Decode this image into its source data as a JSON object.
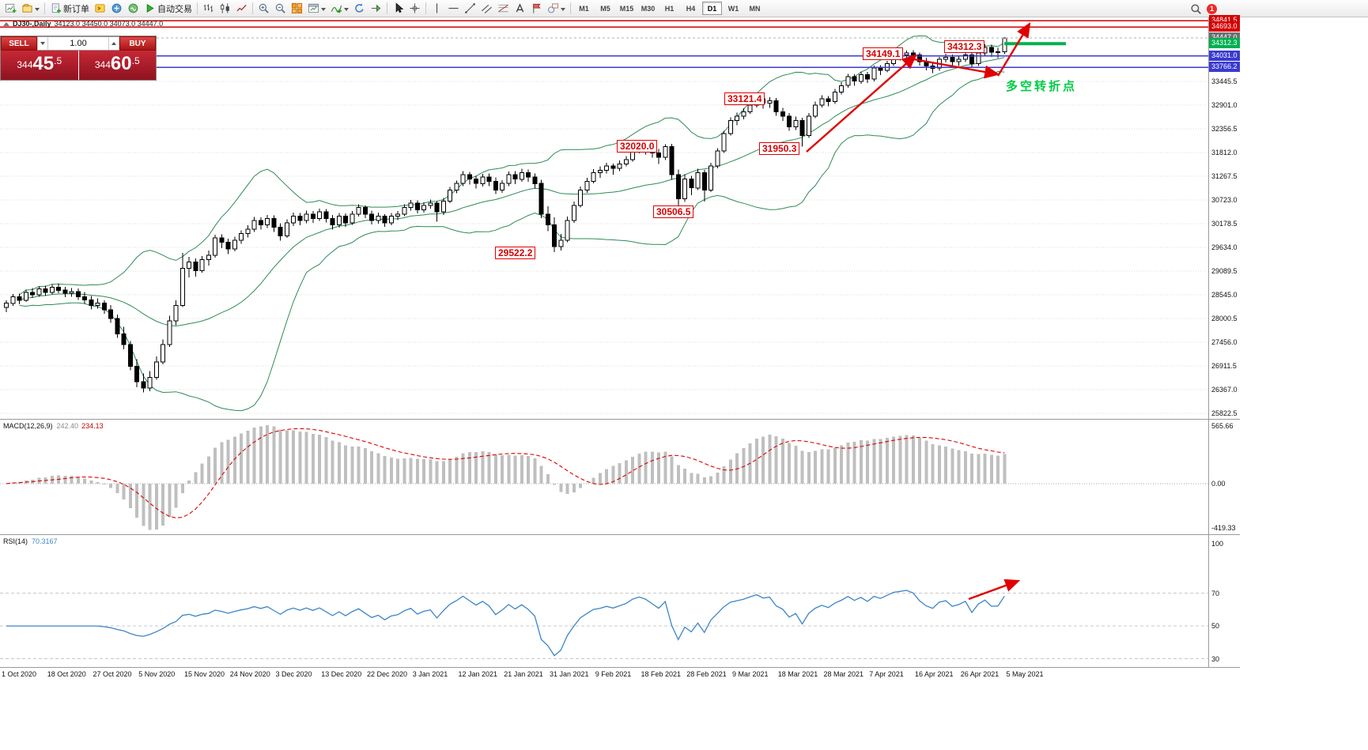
{
  "toolbar": {
    "items": [
      {
        "icon": "chart-plus",
        "name": "new-chart"
      },
      {
        "icon": "profiles",
        "name": "profiles",
        "dd": true
      },
      {
        "sep": true
      },
      {
        "icon": "doc-plus",
        "name": "new-order",
        "label": "新订单"
      },
      {
        "icon": "editor-yellow",
        "name": "metaeditor"
      },
      {
        "icon": "market-blue",
        "name": "market"
      },
      {
        "icon": "signal-green",
        "name": "signals"
      },
      {
        "icon": "play-green",
        "name": "autotrade",
        "label": "自动交易"
      },
      {
        "sep": true
      },
      {
        "icon": "bars",
        "name": "bar-chart-mode"
      },
      {
        "icon": "candles",
        "name": "candle-chart-mode"
      },
      {
        "icon": "line",
        "name": "line-chart-mode"
      },
      {
        "sep": true
      },
      {
        "icon": "zoom-in",
        "name": "zoom-in"
      },
      {
        "icon": "zoom-out",
        "name": "zoom-out"
      },
      {
        "icon": "tiles-orange",
        "name": "tile-windows"
      },
      {
        "icon": "chart-window",
        "name": "new-window",
        "dd": true
      },
      {
        "icon": "indicator-plus",
        "name": "indicators",
        "dd": true
      },
      {
        "icon": "refresh-blue",
        "name": "auto-scroll"
      },
      {
        "icon": "shift-chart",
        "name": "chart-shift"
      },
      {
        "sep": true
      },
      {
        "icon": "cursor",
        "name": "cursor-tool"
      },
      {
        "icon": "crosshair",
        "name": "crosshair-tool"
      },
      {
        "sep": true
      },
      {
        "icon": "vline",
        "name": "vertical-line-tool"
      },
      {
        "icon": "hline",
        "name": "horizontal-line-tool"
      },
      {
        "icon": "tline",
        "name": "trendline-tool"
      },
      {
        "icon": "channel",
        "name": "channel-tool"
      },
      {
        "icon": "fibo",
        "name": "fibonacci-tool"
      },
      {
        "icon": "text-a",
        "name": "text-tool"
      },
      {
        "icon": "label-flag",
        "name": "label-tool"
      },
      {
        "icon": "shapes",
        "name": "shapes-tool",
        "dd": true
      },
      {
        "sep": true
      }
    ],
    "timeframes": [
      "M1",
      "M5",
      "M15",
      "M30",
      "H1",
      "H4",
      "D1",
      "W1",
      "MN"
    ],
    "active_timeframe": "D1",
    "notification_count": "1"
  },
  "chart": {
    "symbol_title": "DJ30-,Daily",
    "ohlc": "34123.0 34450.0 34073.0 34447.0"
  },
  "trade_panel": {
    "sell_label": "SELL",
    "buy_label": "BUY",
    "lot": "1.00",
    "sell_price": "34445.5",
    "buy_price": "34460.5"
  },
  "chart_data": {
    "type": "candlestick",
    "symbol": "DJ30-",
    "timeframe": "Daily",
    "last_ohlc": {
      "open": 34123.0,
      "high": 34450.0,
      "low": 34073.0,
      "close": 34447.0
    },
    "y_axis_labels": [
      "33445.5",
      "32901.0",
      "32356.5",
      "31812.0",
      "31267.5",
      "30723.0",
      "30178.5",
      "29634.0",
      "29089.5",
      "28545.0",
      "28000.5",
      "27456.0",
      "26911.5",
      "26367.0",
      "25822.5"
    ],
    "x_axis_dates": [
      "1 Oct 2020",
      "18 Oct 2020",
      "27 Oct 2020",
      "5 Nov 2020",
      "15 Nov 2020",
      "24 Nov 2020",
      "3 Dec 2020",
      "13 Dec 2020",
      "22 Dec 2020",
      "3 Jan 2021",
      "12 Jan 2021",
      "21 Jan 2021",
      "31 Jan 2021",
      "9 Feb 2021",
      "18 Feb 2021",
      "28 Feb 2021",
      "9 Mar 2021",
      "18 Mar 2021",
      "28 Mar 2021",
      "7 Apr 2021",
      "16 Apr 2021",
      "26 Apr 2021",
      "5 May 2021"
    ],
    "candles": [
      [
        28250,
        28420,
        28150,
        28350
      ],
      [
        28350,
        28560,
        28290,
        28500
      ],
      [
        28500,
        28570,
        28330,
        28420
      ],
      [
        28420,
        28660,
        28380,
        28600
      ],
      [
        28600,
        28700,
        28470,
        28550
      ],
      [
        28550,
        28740,
        28500,
        28680
      ],
      [
        28680,
        28750,
        28520,
        28600
      ],
      [
        28600,
        28790,
        28550,
        28720
      ],
      [
        28720,
        28800,
        28580,
        28650
      ],
      [
        28650,
        28730,
        28490,
        28580
      ],
      [
        28580,
        28700,
        28500,
        28620
      ],
      [
        28620,
        28690,
        28430,
        28500
      ],
      [
        28500,
        28610,
        28340,
        28430
      ],
      [
        28430,
        28520,
        28210,
        28300
      ],
      [
        28300,
        28460,
        28230,
        28350
      ],
      [
        28350,
        28420,
        28110,
        28200
      ],
      [
        28200,
        28310,
        27900,
        28000
      ],
      [
        28000,
        28090,
        27560,
        27650
      ],
      [
        27650,
        27810,
        27290,
        27400
      ],
      [
        27400,
        27480,
        26810,
        26900
      ],
      [
        26900,
        27070,
        26420,
        26550
      ],
      [
        26550,
        26740,
        26300,
        26400
      ],
      [
        26400,
        26790,
        26330,
        26650
      ],
      [
        26650,
        27130,
        26590,
        27000
      ],
      [
        27000,
        27520,
        26950,
        27400
      ],
      [
        27400,
        28060,
        27350,
        27950
      ],
      [
        27950,
        28420,
        27850,
        28300
      ],
      [
        28300,
        29510,
        28260,
        29150
      ],
      [
        29150,
        29420,
        28940,
        29300
      ],
      [
        29300,
        29380,
        28960,
        29100
      ],
      [
        29100,
        29430,
        29050,
        29350
      ],
      [
        29350,
        29560,
        29220,
        29450
      ],
      [
        29450,
        29920,
        29400,
        29850
      ],
      [
        29850,
        29930,
        29620,
        29750
      ],
      [
        29750,
        29830,
        29480,
        29600
      ],
      [
        29600,
        29880,
        29540,
        29800
      ],
      [
        29800,
        30020,
        29720,
        29950
      ],
      [
        29950,
        30140,
        29860,
        30050
      ],
      [
        30050,
        30330,
        29990,
        30250
      ],
      [
        30250,
        30320,
        30040,
        30150
      ],
      [
        30150,
        30380,
        30080,
        30300
      ],
      [
        30300,
        30370,
        29990,
        30100
      ],
      [
        30100,
        30190,
        29790,
        29900
      ],
      [
        29900,
        30280,
        29850,
        30200
      ],
      [
        30200,
        30430,
        30120,
        30350
      ],
      [
        30350,
        30420,
        30140,
        30250
      ],
      [
        30250,
        30480,
        30190,
        30400
      ],
      [
        30400,
        30470,
        30200,
        30300
      ],
      [
        30300,
        30520,
        30240,
        30450
      ],
      [
        30450,
        30510,
        30210,
        30300
      ],
      [
        30300,
        30380,
        30040,
        30150
      ],
      [
        30150,
        30420,
        30090,
        30350
      ],
      [
        30350,
        30410,
        30110,
        30200
      ],
      [
        30200,
        30470,
        30150,
        30400
      ],
      [
        30400,
        30620,
        30340,
        30550
      ],
      [
        30550,
        30600,
        30310,
        30400
      ],
      [
        30400,
        30480,
        30160,
        30250
      ],
      [
        30250,
        30430,
        30180,
        30350
      ],
      [
        30350,
        30400,
        30110,
        30200
      ],
      [
        30200,
        30420,
        30140,
        30350
      ],
      [
        30350,
        30470,
        30260,
        30400
      ],
      [
        30400,
        30620,
        30350,
        30550
      ],
      [
        30550,
        30720,
        30480,
        30650
      ],
      [
        30650,
        30710,
        30410,
        30500
      ],
      [
        30500,
        30670,
        30430,
        30600
      ],
      [
        30600,
        30730,
        30520,
        30650
      ],
      [
        30650,
        30700,
        30220,
        30450
      ],
      [
        30450,
        30770,
        30380,
        30700
      ],
      [
        30700,
        31020,
        30650,
        30950
      ],
      [
        30950,
        31170,
        30880,
        31100
      ],
      [
        31100,
        31390,
        31040,
        31300
      ],
      [
        31300,
        31370,
        31080,
        31200
      ],
      [
        31200,
        31280,
        30990,
        31100
      ],
      [
        31100,
        31320,
        31030,
        31250
      ],
      [
        31250,
        31330,
        31040,
        31150
      ],
      [
        31150,
        31240,
        30860,
        30950
      ],
      [
        30950,
        31180,
        30890,
        31100
      ],
      [
        31100,
        31380,
        31040,
        31300
      ],
      [
        31300,
        31390,
        31090,
        31200
      ],
      [
        31200,
        31440,
        31140,
        31350
      ],
      [
        31350,
        31420,
        31140,
        31250
      ],
      [
        31250,
        31330,
        30990,
        31100
      ],
      [
        31100,
        31190,
        30310,
        30400
      ],
      [
        30400,
        30580,
        30010,
        30150
      ],
      [
        30150,
        30320,
        29522.2,
        29650
      ],
      [
        29650,
        29940,
        29560,
        29800
      ],
      [
        29800,
        30340,
        29750,
        30250
      ],
      [
        30250,
        30690,
        30200,
        30600
      ],
      [
        30600,
        31030,
        30550,
        30950
      ],
      [
        30950,
        31230,
        30890,
        31150
      ],
      [
        31150,
        31430,
        31100,
        31350
      ],
      [
        31350,
        31490,
        31230,
        31400
      ],
      [
        31400,
        31580,
        31330,
        31500
      ],
      [
        31500,
        31560,
        31300,
        31450
      ],
      [
        31450,
        31630,
        31390,
        31550
      ],
      [
        31550,
        31730,
        31490,
        31650
      ],
      [
        31650,
        31920,
        31600,
        31850
      ],
      [
        31850,
        32020,
        31790,
        31950
      ],
      [
        31950,
        32010,
        31770,
        31900
      ],
      [
        31900,
        31980,
        31690,
        31800
      ],
      [
        31800,
        31890,
        31550,
        31700
      ],
      [
        31700,
        32000,
        31640,
        31950
      ],
      [
        31950,
        32010,
        31190,
        31300
      ],
      [
        31300,
        31420,
        30506.5,
        30750
      ],
      [
        30750,
        31310,
        30680,
        31200
      ],
      [
        31200,
        31280,
        30830,
        31000
      ],
      [
        31000,
        31440,
        30950,
        31350
      ],
      [
        31350,
        31410,
        30690,
        30950
      ],
      [
        30950,
        31580,
        30900,
        31500
      ],
      [
        31500,
        31910,
        31450,
        31850
      ],
      [
        31850,
        32310,
        31800,
        32250
      ],
      [
        32250,
        32620,
        32200,
        32550
      ],
      [
        32550,
        32730,
        32440,
        32650
      ],
      [
        32650,
        32830,
        32570,
        32750
      ],
      [
        32750,
        32970,
        32700,
        32900
      ],
      [
        32900,
        33121.4,
        32850,
        33050
      ],
      [
        33050,
        33110,
        32820,
        32950
      ],
      [
        32950,
        33080,
        32840,
        33000
      ],
      [
        33000,
        33060,
        32660,
        32750
      ],
      [
        32750,
        32840,
        32540,
        32650
      ],
      [
        32650,
        32720,
        32310,
        32400
      ],
      [
        32400,
        32640,
        32330,
        32550
      ],
      [
        32550,
        32610,
        31950.3,
        32200
      ],
      [
        32200,
        32720,
        32150,
        32650
      ],
      [
        32650,
        32980,
        32600,
        32900
      ],
      [
        32900,
        33130,
        32850,
        33050
      ],
      [
        33050,
        33110,
        32870,
        32980
      ],
      [
        32980,
        33270,
        32930,
        33200
      ],
      [
        33200,
        33430,
        33150,
        33350
      ],
      [
        33350,
        33620,
        33300,
        33550
      ],
      [
        33550,
        33610,
        33350,
        33450
      ],
      [
        33450,
        33670,
        33390,
        33600
      ],
      [
        33600,
        33660,
        33410,
        33500
      ],
      [
        33500,
        33810,
        33450,
        33750
      ],
      [
        33750,
        33820,
        33590,
        33700
      ],
      [
        33700,
        33920,
        33650,
        33850
      ],
      [
        33850,
        34060,
        33800,
        34000
      ],
      [
        34000,
        34120,
        33930,
        34050
      ],
      [
        34050,
        34149.1,
        33960,
        34100
      ],
      [
        34100,
        34160,
        33950,
        34050
      ],
      [
        34050,
        34110,
        33810,
        33900
      ],
      [
        33900,
        33990,
        33700,
        33800
      ],
      [
        33800,
        33870,
        33640,
        33750
      ],
      [
        33750,
        34010,
        33690,
        33950
      ],
      [
        33950,
        34080,
        33880,
        34000
      ],
      [
        34000,
        34060,
        33790,
        33900
      ],
      [
        33900,
        34020,
        33800,
        33950
      ],
      [
        33950,
        34130,
        33890,
        34050
      ],
      [
        34050,
        34100,
        33766.2,
        33850
      ],
      [
        33850,
        34160,
        33800,
        34100
      ],
      [
        34100,
        34300,
        34040,
        34230
      ],
      [
        34230,
        34290,
        34010,
        34120
      ],
      [
        34120,
        34220,
        33980,
        34123
      ],
      [
        34123,
        34450,
        34073,
        34447
      ]
    ],
    "price_markers": [
      {
        "text": "34841.5",
        "price": 34841.5,
        "color": "#d40000",
        "style": "line"
      },
      {
        "text": "34693.0",
        "price": 34693.0,
        "color": "#d40000",
        "style": "line"
      },
      {
        "text": "34447.0",
        "price": 34447.0,
        "color": "#6e6e6e",
        "style": "current"
      },
      {
        "text": "34312.3",
        "price": 34312.3,
        "color": "#00b050",
        "style": "segment"
      },
      {
        "text": "34031.0",
        "price": 34031.0,
        "color": "#3a3ad0",
        "style": "line"
      },
      {
        "text": "33766.2",
        "price": 33766.2,
        "color": "#3a3ad0",
        "style": "line"
      }
    ],
    "callouts": [
      "29522.2",
      "32020.0",
      "30506.5",
      "31950.3",
      "33121.4",
      "34149.1",
      "34312.3"
    ],
    "pivot_label": "多空转折点",
    "trend_arrows": [
      [
        1020,
        170,
        1158,
        48
      ],
      [
        1150,
        52,
        1262,
        72
      ],
      [
        1262,
        74,
        1302,
        8
      ]
    ],
    "rsi_arrow": [
      1225,
      80,
      1288,
      57
    ],
    "indicators": {
      "bollinger": {
        "name": "Bollinger Bands",
        "period": 20,
        "deviation": 2,
        "color": "#2e8b57"
      },
      "macd": {
        "label": "MACD(12,26,9)",
        "value": "242.40",
        "signal": "234.13",
        "axis_max": "565.66",
        "axis_zero": "0.00",
        "axis_min": "-419.33"
      },
      "rsi": {
        "label": "RSI(14)",
        "value": "70.3167",
        "axis_labels": [
          "100",
          "70",
          "50",
          "30"
        ],
        "levels": [
          70,
          50,
          30
        ]
      }
    }
  }
}
